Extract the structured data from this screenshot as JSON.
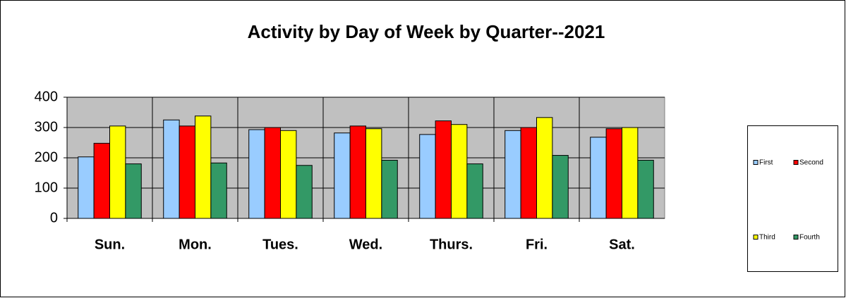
{
  "chart_data": {
    "type": "bar",
    "title": "Activity by Day of Week by Quarter--2021",
    "categories": [
      "Sun.",
      "Mon.",
      "Tues.",
      "Wed.",
      "Thurs.",
      "Fri.",
      "Sat."
    ],
    "series": [
      {
        "name": "First",
        "color": "#99ccff",
        "values": [
          203,
          325,
          293,
          282,
          277,
          290,
          268
        ]
      },
      {
        "name": "Second",
        "color": "#ff0000",
        "values": [
          248,
          305,
          300,
          305,
          322,
          300,
          296
        ]
      },
      {
        "name": "Third",
        "color": "#ffff00",
        "values": [
          305,
          338,
          290,
          296,
          310,
          333,
          300
        ]
      },
      {
        "name": "Fourth",
        "color": "#339966",
        "values": [
          180,
          183,
          175,
          192,
          180,
          208,
          192
        ]
      }
    ],
    "ylim": [
      0,
      400
    ],
    "yticks": [
      0,
      100,
      200,
      300,
      400
    ],
    "grid": true,
    "legend": "right"
  }
}
